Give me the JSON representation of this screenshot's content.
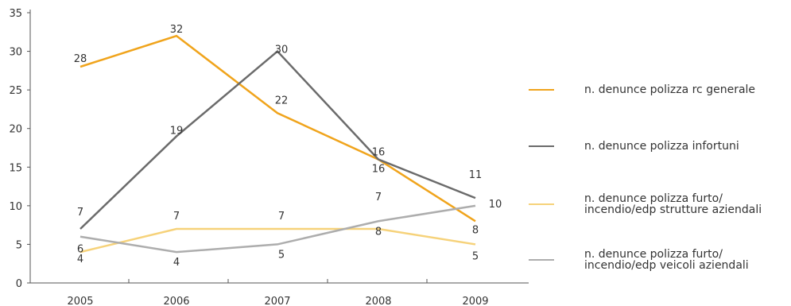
{
  "chart_data": {
    "type": "line",
    "categories": [
      "2005",
      "2006",
      "2007",
      "2008",
      "2009"
    ],
    "ylim": [
      0,
      35
    ],
    "yticks": [
      0,
      5,
      10,
      15,
      20,
      25,
      30,
      35
    ],
    "grid": false,
    "legend_position": "right",
    "series": [
      {
        "name": "n. denunce polizza rc generale",
        "color": "#f0a41c",
        "values": [
          28,
          32,
          22,
          16,
          8
        ]
      },
      {
        "name": "n. denunce polizza infortuni",
        "color": "#6b6b6b",
        "values": [
          7,
          19,
          30,
          16,
          11
        ]
      },
      {
        "name": "n. denunce polizza furto/\nincendio/edp strutture aziendali",
        "color": "#f6d27a",
        "values": [
          4,
          7,
          7,
          7,
          5
        ]
      },
      {
        "name": "n. denunce polizza furto/\nincendio/edp veicoli aziendali",
        "color": "#adadad",
        "values": [
          6,
          4,
          5,
          8,
          10
        ]
      }
    ]
  }
}
